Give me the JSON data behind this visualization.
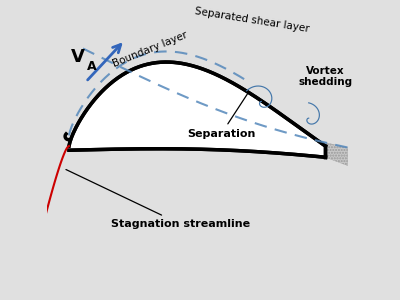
{
  "bg_color": "#e0e0e0",
  "sail_color": "#000000",
  "sail_lw": 2.5,
  "shear_color": "#5588bb",
  "shear_lw": 1.5,
  "stag_color": "#cc0000",
  "stag_lw": 1.5,
  "arrow_color": "#3366bb",
  "vortex_color": "#4477aa",
  "hatch_face": "#c8c8c8",
  "va_label": "V",
  "va_sub": "A",
  "labels": {
    "boundary_layer": "Boundary layer",
    "separated_shear": "Separated shear layer",
    "separation": "Separation",
    "stagnation": "Stagnation streamline",
    "vortex": "Vortex\nshedding"
  },
  "xlim": [
    -0.5,
    10.5
  ],
  "ylim": [
    -4.5,
    6.0
  ]
}
